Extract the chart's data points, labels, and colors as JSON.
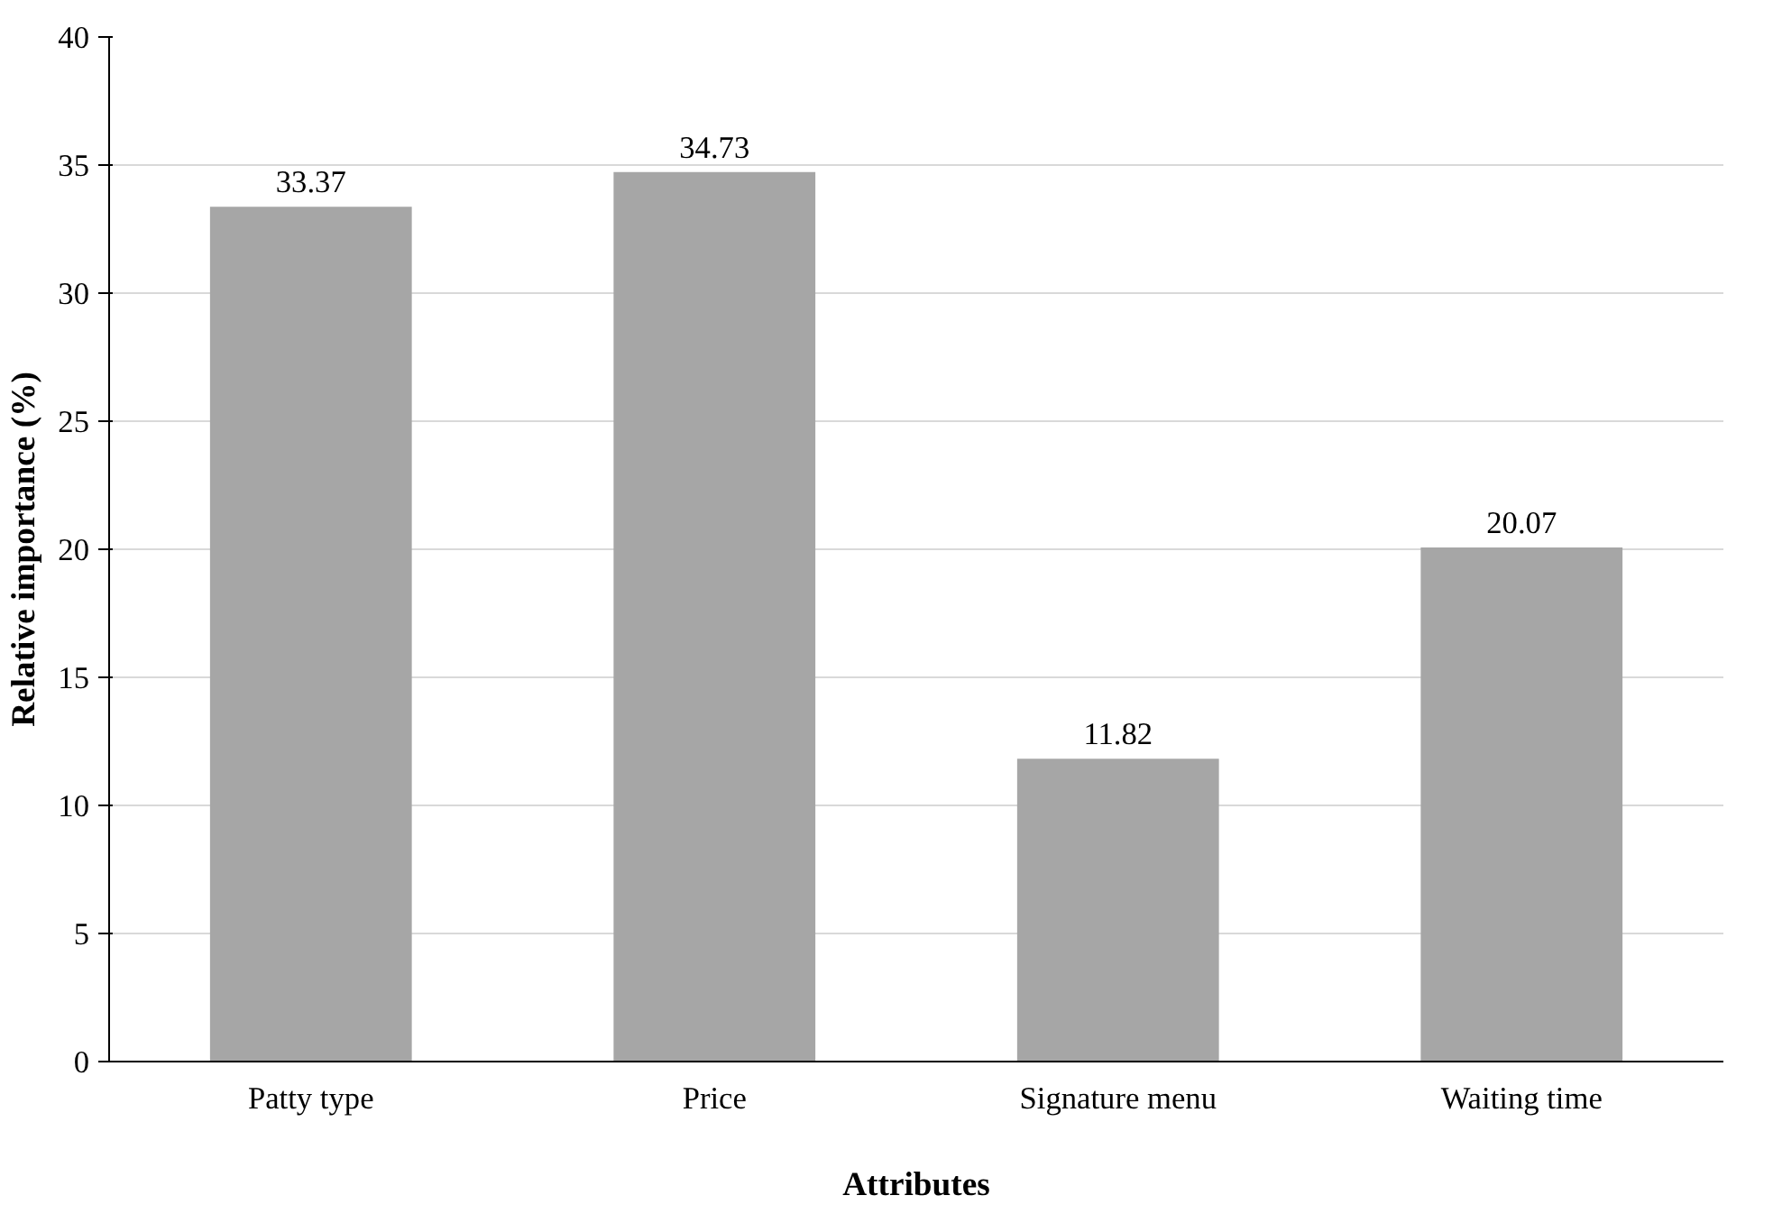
{
  "chart_data": {
    "type": "bar",
    "xlabel": "Attributes",
    "ylabel": "Relative importance (%)",
    "categories": [
      "Patty type",
      "Price",
      "Signature menu",
      "Waiting time"
    ],
    "values": [
      33.37,
      34.73,
      11.82,
      20.07
    ],
    "color": "#a6a6a6",
    "ylim": [
      0,
      40
    ],
    "yticks": [
      0,
      5,
      10,
      15,
      20,
      25,
      30,
      35,
      40
    ],
    "grid": "y",
    "data_labels": true
  }
}
